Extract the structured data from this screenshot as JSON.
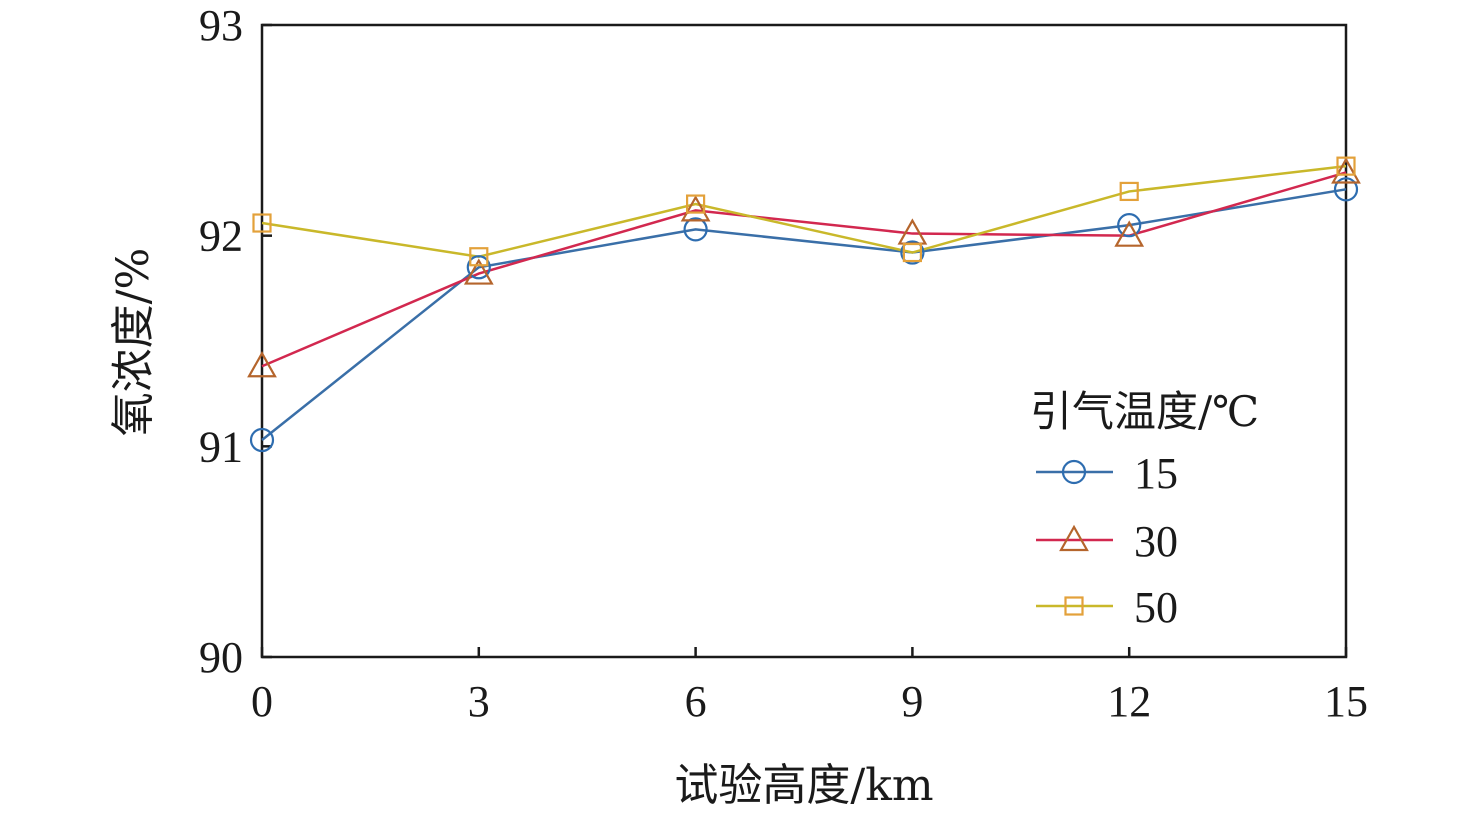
{
  "chart_data": {
    "type": "line",
    "xlabel": "试验高度/km",
    "ylabel": "氧浓度/%",
    "x": [
      0,
      3,
      6,
      9,
      12,
      15
    ],
    "xticks": [
      "0",
      "3",
      "6",
      "9",
      "12",
      "15"
    ],
    "yticks": [
      "90",
      "91",
      "92",
      "93"
    ],
    "xlim": [
      0,
      15
    ],
    "ylim": [
      90,
      93
    ],
    "grid": false,
    "legend": {
      "title": "引气温度/℃",
      "placement": "lower-right"
    },
    "series": [
      {
        "name": "15",
        "marker": "circle",
        "color": "#3a6fa8",
        "marker_color": "#2e6db0",
        "values": [
          91.03,
          91.85,
          92.03,
          91.92,
          92.05,
          92.22
        ]
      },
      {
        "name": "30",
        "marker": "triangle",
        "color": "#d2284f",
        "marker_color": "#b5652c",
        "values": [
          91.38,
          91.82,
          92.12,
          92.01,
          92.0,
          92.3
        ]
      },
      {
        "name": "50",
        "marker": "square",
        "color": "#c9b82a",
        "marker_color": "#e3a13a",
        "values": [
          92.06,
          91.9,
          92.15,
          91.92,
          92.21,
          92.33
        ]
      }
    ]
  }
}
